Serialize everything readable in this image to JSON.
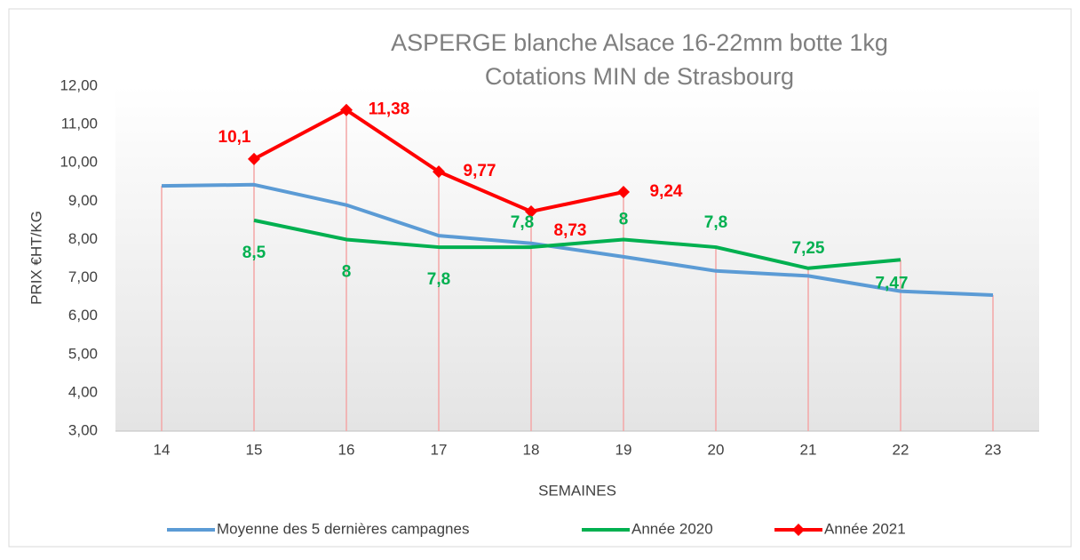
{
  "chart_data": {
    "type": "line",
    "title": "ASPERGE blanche Alsace 16-22mm botte 1kg",
    "subtitle": "Cotations MIN de Strasbourg",
    "x_label": "SEMAINES",
    "y_label": "PRIX €HT/KG",
    "categories": [
      "14",
      "15",
      "16",
      "17",
      "18",
      "19",
      "20",
      "21",
      "22",
      "23"
    ],
    "ylim": [
      3,
      12
    ],
    "yticks": [
      {
        "value": 3,
        "label": "3,00"
      },
      {
        "value": 4,
        "label": "4,00"
      },
      {
        "value": 5,
        "label": "5,00"
      },
      {
        "value": 6,
        "label": "6,00"
      },
      {
        "value": 7,
        "label": "7,00"
      },
      {
        "value": 8,
        "label": "8,00"
      },
      {
        "value": 9,
        "label": "9,00"
      },
      {
        "value": 10,
        "label": "10,00"
      },
      {
        "value": 11,
        "label": "11,00"
      },
      {
        "value": 12,
        "label": "12,00"
      }
    ],
    "legend": "bottom",
    "series": [
      {
        "name": "Moyenne des 5 dernières campagnes",
        "color": "#5b9bd5",
        "values": [
          9.4,
          9.43,
          8.9,
          8.1,
          7.9,
          7.55,
          7.18,
          7.05,
          6.65,
          6.55
        ]
      },
      {
        "name": "Année 2020",
        "color": "#00b050",
        "values": [
          null,
          8.5,
          8,
          7.8,
          7.8,
          8,
          7.8,
          7.25,
          7.47,
          null
        ],
        "value_labels": [
          null,
          "8,5",
          "8",
          "7,8",
          "7,8",
          "8",
          "7,8",
          "7,25",
          "7,47",
          null
        ]
      },
      {
        "name": "Année 2021",
        "color": "#ff0000",
        "marker": "diamond",
        "values": [
          null,
          10.1,
          11.38,
          9.77,
          8.73,
          9.24,
          null,
          null,
          null,
          null
        ],
        "value_labels": [
          null,
          "10,1",
          "11,38",
          "9,77",
          "8,73",
          "9,24",
          null,
          null,
          null,
          null
        ]
      }
    ]
  }
}
